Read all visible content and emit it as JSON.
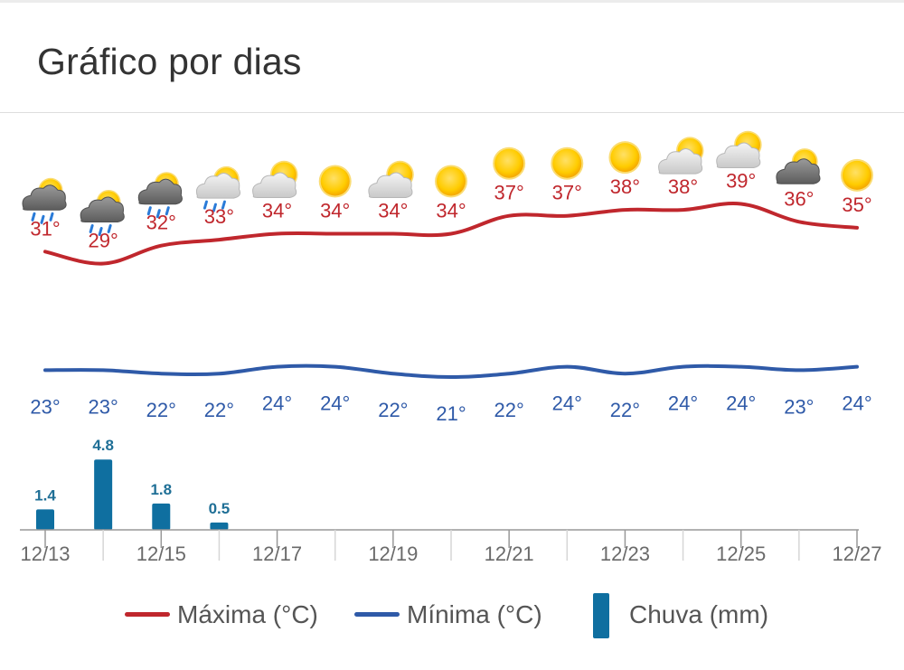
{
  "header": {
    "title": "Gráfico por dias"
  },
  "colors": {
    "max": "#c0272d",
    "min": "#2f5aa8",
    "rain": "#0f6fa0",
    "axis": "#999999"
  },
  "chart_data": {
    "type": "line",
    "categories": [
      "12/13",
      "12/14",
      "12/15",
      "12/16",
      "12/17",
      "12/18",
      "12/19",
      "12/20",
      "12/21",
      "12/22",
      "12/23",
      "12/24",
      "12/25",
      "12/26",
      "12/27"
    ],
    "x_tick_labels": [
      "12/13",
      "12/15",
      "12/17",
      "12/19",
      "12/21",
      "12/23",
      "12/25",
      "12/27"
    ],
    "series": [
      {
        "name": "Máxima (°C)",
        "type": "line",
        "values": [
          31,
          29,
          32,
          33,
          34,
          34,
          34,
          34,
          37,
          37,
          38,
          38,
          39,
          36,
          35
        ],
        "labels": [
          "31°",
          "29°",
          "32°",
          "33°",
          "34°",
          "34°",
          "34°",
          "34°",
          "37°",
          "37°",
          "38°",
          "38°",
          "39°",
          "36°",
          "35°"
        ]
      },
      {
        "name": "Mínima (°C)",
        "type": "line",
        "values": [
          23,
          23,
          22,
          22,
          24,
          24,
          22,
          21,
          22,
          24,
          22,
          24,
          24,
          23,
          24
        ],
        "labels": [
          "23°",
          "23°",
          "22°",
          "22°",
          "24°",
          "24°",
          "22°",
          "21°",
          "22°",
          "24°",
          "22°",
          "24°",
          "24°",
          "23°",
          "24°"
        ]
      },
      {
        "name": "Chuva (mm)",
        "type": "bar",
        "values": [
          1.4,
          4.8,
          1.8,
          0.5,
          0,
          0,
          0,
          0,
          0,
          0,
          0,
          0,
          0,
          0,
          0
        ],
        "labels": [
          "1.4",
          "4.8",
          "1.8",
          "0.5"
        ]
      }
    ],
    "weather_icons": [
      "cloud-sun-rain-icon",
      "cloud-sun-rain-icon",
      "cloud-sun-rain-icon",
      "cloud-sun-drizzle-icon",
      "partly-cloudy-icon",
      "sun-icon",
      "partly-cloudy-icon",
      "sun-icon",
      "sun-icon",
      "sun-icon",
      "sun-icon",
      "partly-cloudy-icon",
      "partly-cloudy-icon",
      "cloud-sun-icon",
      "sun-icon"
    ],
    "legend": {
      "placement": "bottom"
    }
  }
}
